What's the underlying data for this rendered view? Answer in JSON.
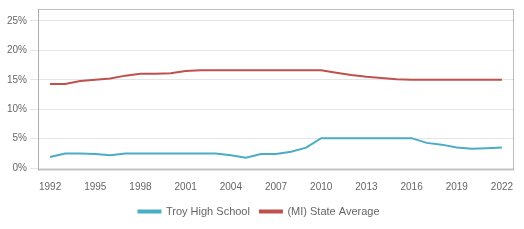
{
  "chart_data": {
    "type": "line",
    "x": [
      1992,
      1993,
      1994,
      1995,
      1996,
      1997,
      1998,
      1999,
      2000,
      2001,
      2002,
      2003,
      2004,
      2005,
      2006,
      2007,
      2008,
      2009,
      2010,
      2011,
      2012,
      2013,
      2014,
      2015,
      2016,
      2017,
      2018,
      2019,
      2020,
      2021,
      2022
    ],
    "series": [
      {
        "name": "Troy High School",
        "color": "#4bacc6",
        "values": [
          0.019,
          0.025,
          0.025,
          0.024,
          0.022,
          0.025,
          0.025,
          0.025,
          0.025,
          0.025,
          0.025,
          0.025,
          0.022,
          0.018,
          0.024,
          0.024,
          0.028,
          0.035,
          0.051,
          0.051,
          0.051,
          0.051,
          0.051,
          0.051,
          0.051,
          0.043,
          0.04,
          0.035,
          0.033,
          0.034,
          0.035
        ]
      },
      {
        "name": "(MI) State Average",
        "color": "#c0504d",
        "values": [
          0.143,
          0.143,
          0.148,
          0.15,
          0.152,
          0.157,
          0.16,
          0.16,
          0.161,
          0.165,
          0.166,
          0.166,
          0.166,
          0.166,
          0.166,
          0.166,
          0.166,
          0.166,
          0.166,
          0.162,
          0.158,
          0.155,
          0.153,
          0.151,
          0.15,
          0.15,
          0.15,
          0.15,
          0.15,
          0.15,
          0.15
        ]
      }
    ],
    "xlim": [
      1991.2,
      2022.8
    ],
    "xticks": [
      1992,
      1995,
      1998,
      2001,
      2004,
      2007,
      2010,
      2013,
      2016,
      2019,
      2022
    ],
    "ylim": [
      -0.003,
      0.27
    ],
    "yticks": [
      {
        "value": 0.0,
        "label": "0%"
      },
      {
        "value": 0.05,
        "label": "5%"
      },
      {
        "value": 0.1,
        "label": "10%"
      },
      {
        "value": 0.15,
        "label": "15%"
      },
      {
        "value": 0.2,
        "label": "20%"
      },
      {
        "value": 0.25,
        "label": "25%"
      }
    ],
    "grid": "y",
    "legend": "bottom"
  }
}
